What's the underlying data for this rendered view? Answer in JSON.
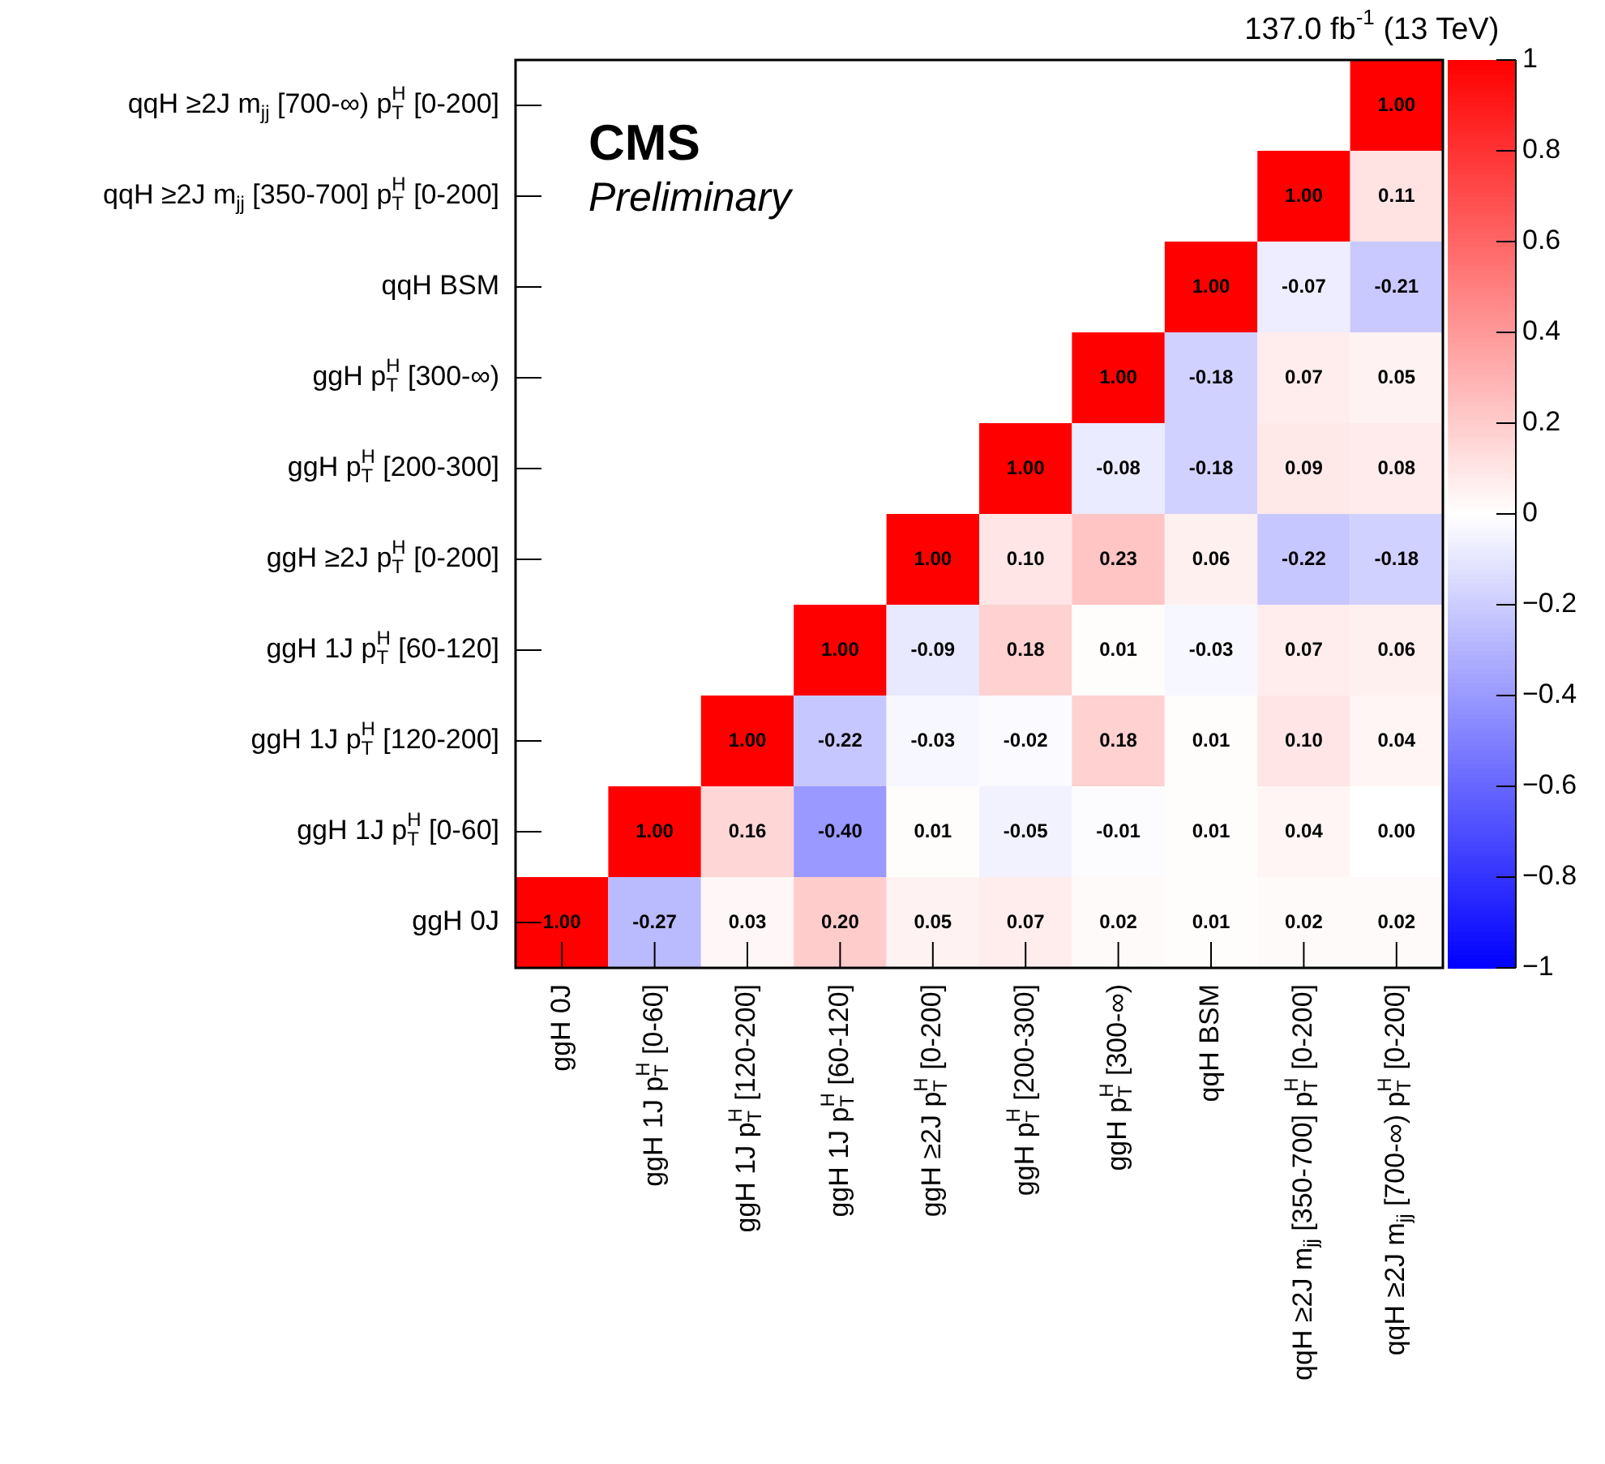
{
  "chart_data": {
    "type": "heatmap",
    "title": "137.0 fb$^{-1}$ (13 TeV)",
    "annotations": [
      "CMS",
      "Preliminary"
    ],
    "categories": [
      "ggH 0J",
      "ggH 1J p$_{T}$$^{H}$ [0-60]",
      "ggH 1J p$_{T}$$^{H}$ [120-200]",
      "ggH 1J p$_{T}$$^{H}$ [60-120]",
      "ggH ≥2J p$_{T}$$^{H}$ [0-200]",
      "ggH p$_{T}$$^{H}$ [200-300]",
      "ggH p$_{T}$$^{H}$ [300-∞)",
      "qqH BSM",
      "qqH ≥2J m$_{jj}$ [350-700] p$_{T}$$^{H}$ [0-200]",
      "qqH ≥2J m$_{jj}$ [700-∞) p$_{T}$$^{H}$ [0-200]"
    ],
    "y_categories": [
      "qqH ≥2J m$_{jj}$ [700-∞) p$_{T}$$^{H}$ [0-200]",
      "qqH ≥2J m$_{jj}$ [350-700] p$_{T}$$^{H}$ [0-200]",
      "qqH BSM",
      "ggH p$_{T}$$^{H}$ [300-∞)",
      "ggH p$_{T}$$^{H}$ [200-300]",
      "ggH ≥2J p$_{T}$$^{H}$ [0-200]",
      "ggH 1J p$_{T}$$^{H}$ [60-120]",
      "ggH 1J p$_{T}$$^{H}$ [120-200]",
      "ggH 1J p$_{T}$$^{H}$ [0-60]",
      "ggH 0J"
    ],
    "cells": [
      [
        null,
        null,
        null,
        null,
        null,
        null,
        null,
        null,
        null,
        1
      ],
      [
        null,
        null,
        null,
        null,
        null,
        null,
        null,
        null,
        1,
        0.11
      ],
      [
        null,
        null,
        null,
        null,
        null,
        null,
        null,
        1,
        -0.07,
        -0.21
      ],
      [
        null,
        null,
        null,
        null,
        null,
        null,
        1,
        -0.18,
        0.07,
        0.05
      ],
      [
        null,
        null,
        null,
        null,
        null,
        1,
        -0.08,
        -0.18,
        0.09,
        0.08
      ],
      [
        null,
        null,
        null,
        null,
        1,
        0.1,
        0.23,
        0.06,
        -0.22,
        -0.18
      ],
      [
        null,
        null,
        null,
        1,
        -0.09,
        0.18,
        0.01,
        -0.03,
        0.07,
        0.06
      ],
      [
        null,
        null,
        1,
        -0.22,
        -0.03,
        -0.02,
        0.18,
        0.01,
        0.1,
        0.04
      ],
      [
        null,
        1,
        0.16,
        -0.4,
        0.01,
        -0.05,
        -0.01,
        0.01,
        0.04,
        0.0
      ],
      [
        1,
        -0.27,
        0.03,
        0.2,
        0.05,
        0.07,
        0.02,
        0.01,
        0.02,
        0.02
      ]
    ],
    "cell_labels": [
      [
        null,
        null,
        null,
        null,
        null,
        null,
        null,
        null,
        null,
        "1.00"
      ],
      [
        null,
        null,
        null,
        null,
        null,
        null,
        null,
        null,
        "1.00",
        "0.11"
      ],
      [
        null,
        null,
        null,
        null,
        null,
        null,
        null,
        "1.00",
        "-0.07",
        "-0.21"
      ],
      [
        null,
        null,
        null,
        null,
        null,
        null,
        "1.00",
        "-0.18",
        "0.07",
        "0.05"
      ],
      [
        null,
        null,
        null,
        null,
        null,
        "1.00",
        "-0.08",
        "-0.18",
        "0.09",
        "0.08"
      ],
      [
        null,
        null,
        null,
        null,
        "1.00",
        "0.10",
        "0.23",
        "0.06",
        "-0.22",
        "-0.18"
      ],
      [
        null,
        null,
        null,
        "1.00",
        "-0.09",
        "0.18",
        "0.01",
        "-0.03",
        "0.07",
        "0.06"
      ],
      [
        null,
        null,
        "1.00",
        "-0.22",
        "-0.03",
        "-0.02",
        "0.18",
        "0.01",
        "0.10",
        "0.04"
      ],
      [
        null,
        "1.00",
        "0.16",
        "-0.40",
        "0.01",
        "-0.05",
        "-0.01",
        "0.01",
        "0.04",
        "0.00"
      ],
      [
        "1.00",
        "-0.27",
        "0.03",
        "0.20",
        "0.05",
        "0.07",
        "0.02",
        "0.01",
        "0.02",
        "0.02"
      ]
    ],
    "clim": [
      -1,
      1
    ],
    "cticks": [
      -1,
      -0.8,
      -0.6,
      -0.4,
      -0.2,
      0,
      0.2,
      0.4,
      0.6,
      0.8,
      1
    ]
  }
}
